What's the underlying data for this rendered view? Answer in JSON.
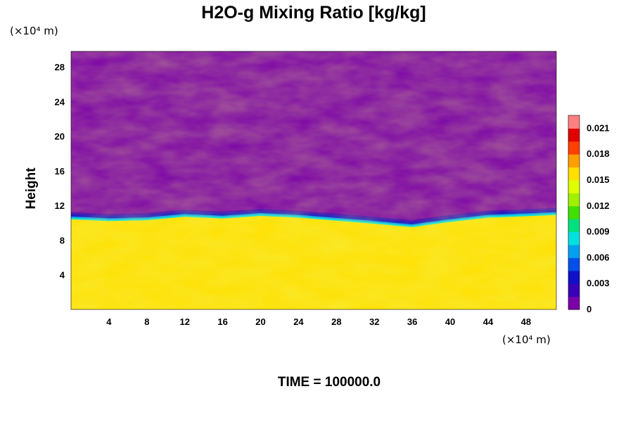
{
  "chart_data": {
    "type": "heatmap",
    "title": "H2O-g Mixing Ratio [kg/kg]",
    "ylabel": "Height",
    "x_unit": "(×10⁴ m)",
    "y_unit": "(×10⁴ m)",
    "x_ticks": [
      "4",
      "8",
      "12",
      "16",
      "20",
      "24",
      "28",
      "32",
      "36",
      "40",
      "44",
      "48"
    ],
    "y_ticks": [
      "4",
      "8",
      "12",
      "16",
      "20",
      "24",
      "28"
    ],
    "xlim": [
      0,
      51.2
    ],
    "ylim": [
      0,
      29.8
    ],
    "colorbar": {
      "min": 0,
      "max": 0.0225,
      "ticks": [
        "0",
        "0.003",
        "0.006",
        "0.009",
        "0.012",
        "0.015",
        "0.018",
        "0.021"
      ],
      "colors": [
        "#7a00a8",
        "#3a00b8",
        "#1010c8",
        "#0050e8",
        "#00a0f0",
        "#00e0e0",
        "#00e080",
        "#40e000",
        "#a0f000",
        "#e0ff00",
        "#ffe000",
        "#ffa000",
        "#ff4000",
        "#e00000",
        "#ff8080"
      ]
    },
    "field": {
      "dry_value": 0,
      "moist_value": 0.0152,
      "moist_top_height": [
        10.4,
        10.2,
        10.3,
        10.7,
        10.5,
        10.8,
        10.6,
        9.9,
        9.5,
        10.1,
        10.6,
        10.9
      ],
      "moist_top_x": [
        0,
        4,
        8,
        12,
        16,
        20,
        24,
        32,
        36,
        40,
        44,
        51.2
      ]
    },
    "time_label": "TIME = 100000.0"
  }
}
